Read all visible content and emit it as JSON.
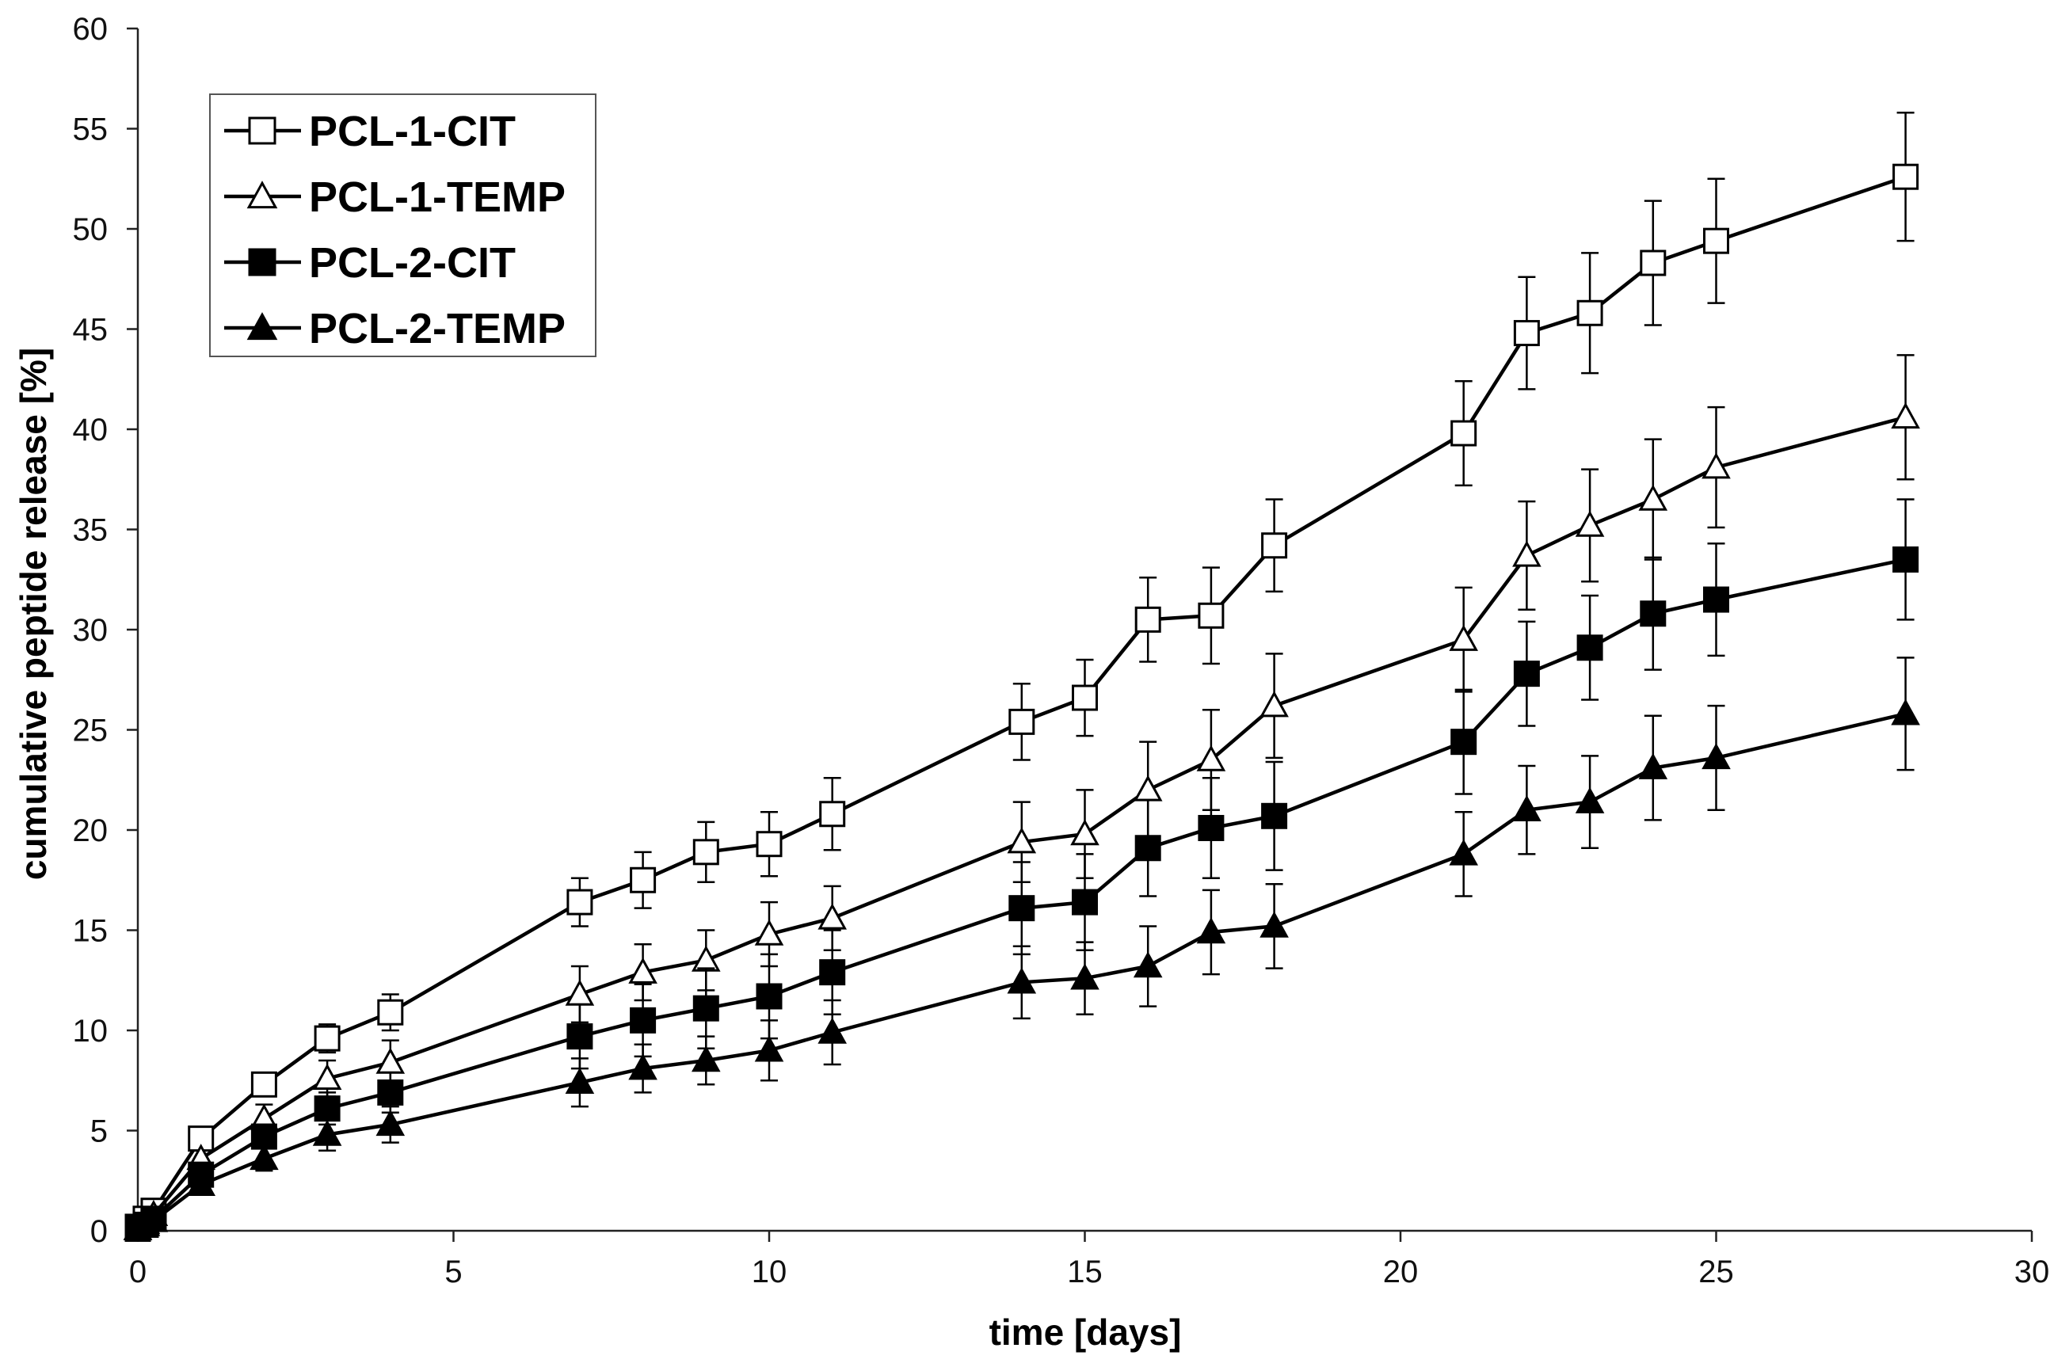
{
  "chart_data": {
    "type": "line",
    "title": "",
    "xlabel": "time [days]",
    "ylabel": "cumulative peptide release [%]",
    "xlim": [
      0,
      30
    ],
    "ylim": [
      0,
      60
    ],
    "xticks": [
      0,
      5,
      10,
      15,
      20,
      25,
      30
    ],
    "yticks": [
      0,
      5,
      10,
      15,
      20,
      25,
      30,
      35,
      40,
      45,
      50,
      55,
      60
    ],
    "grid": false,
    "legend_position": "top-left",
    "series": [
      {
        "name": "PCL-1-CIT",
        "marker": "square-open",
        "x": [
          0,
          0.125,
          0.25,
          1,
          2,
          3,
          4,
          7,
          8,
          9,
          10,
          11,
          14,
          15,
          16,
          17,
          18,
          21,
          22,
          23,
          24,
          25,
          28
        ],
        "y": [
          0.2,
          0.6,
          1.0,
          4.6,
          7.3,
          9.6,
          10.9,
          16.4,
          17.5,
          18.9,
          19.3,
          20.8,
          25.4,
          26.6,
          30.5,
          30.7,
          34.2,
          39.8,
          44.8,
          45.8,
          48.3,
          49.4,
          52.6
        ],
        "err": [
          0.1,
          0.2,
          0.3,
          0.4,
          0.5,
          0.7,
          0.9,
          1.2,
          1.4,
          1.5,
          1.6,
          1.8,
          1.9,
          1.9,
          2.1,
          2.4,
          2.3,
          2.6,
          2.8,
          3.0,
          3.1,
          3.1,
          3.2
        ]
      },
      {
        "name": "PCL-1-TEMP",
        "marker": "triangle-open",
        "x": [
          0,
          0.125,
          0.25,
          1,
          2,
          3,
          4,
          7,
          8,
          9,
          10,
          11,
          14,
          15,
          16,
          17,
          18,
          21,
          22,
          23,
          24,
          25,
          28
        ],
        "y": [
          0.1,
          0.4,
          0.8,
          3.6,
          5.6,
          7.6,
          8.4,
          11.8,
          12.9,
          13.5,
          14.8,
          15.6,
          19.4,
          19.8,
          22.0,
          23.5,
          26.2,
          29.5,
          33.7,
          35.2,
          36.5,
          38.1,
          40.6
        ],
        "err": [
          0.1,
          0.2,
          0.3,
          0.4,
          0.7,
          0.9,
          1.1,
          1.4,
          1.4,
          1.5,
          1.6,
          1.6,
          2.0,
          2.2,
          2.4,
          2.5,
          2.6,
          2.6,
          2.7,
          2.8,
          3.0,
          3.0,
          3.1
        ]
      },
      {
        "name": "PCL-2-CIT",
        "marker": "square-filled",
        "x": [
          0,
          0.125,
          0.25,
          1,
          2,
          3,
          4,
          7,
          8,
          9,
          10,
          11,
          14,
          15,
          16,
          17,
          18,
          21,
          22,
          23,
          24,
          25,
          28
        ],
        "y": [
          0.1,
          0.3,
          0.6,
          2.8,
          4.7,
          6.1,
          6.9,
          9.7,
          10.5,
          11.1,
          11.7,
          12.9,
          16.1,
          16.4,
          19.1,
          20.1,
          20.7,
          24.4,
          27.8,
          29.1,
          30.8,
          31.5,
          33.5
        ],
        "err": [
          0.1,
          0.2,
          0.2,
          0.4,
          0.6,
          0.8,
          1.0,
          1.6,
          1.8,
          2.0,
          2.1,
          2.1,
          2.3,
          2.4,
          2.4,
          2.5,
          2.7,
          2.6,
          2.6,
          2.6,
          2.8,
          2.8,
          3.0
        ]
      },
      {
        "name": "PCL-2-TEMP",
        "marker": "triangle-filled",
        "x": [
          0,
          0.125,
          0.25,
          1,
          2,
          3,
          4,
          7,
          8,
          9,
          10,
          11,
          14,
          15,
          16,
          17,
          18,
          21,
          22,
          23,
          24,
          25,
          28
        ],
        "y": [
          0.1,
          0.3,
          0.5,
          2.3,
          3.6,
          4.8,
          5.3,
          7.4,
          8.1,
          8.5,
          9.0,
          9.9,
          12.4,
          12.6,
          13.2,
          14.9,
          15.2,
          18.8,
          21.0,
          21.4,
          23.1,
          23.6,
          25.8
        ],
        "err": [
          0.1,
          0.1,
          0.2,
          0.3,
          0.6,
          0.8,
          0.9,
          1.2,
          1.2,
          1.2,
          1.5,
          1.6,
          1.8,
          1.8,
          2.0,
          2.1,
          2.1,
          2.1,
          2.2,
          2.3,
          2.6,
          2.6,
          2.8
        ]
      }
    ]
  }
}
